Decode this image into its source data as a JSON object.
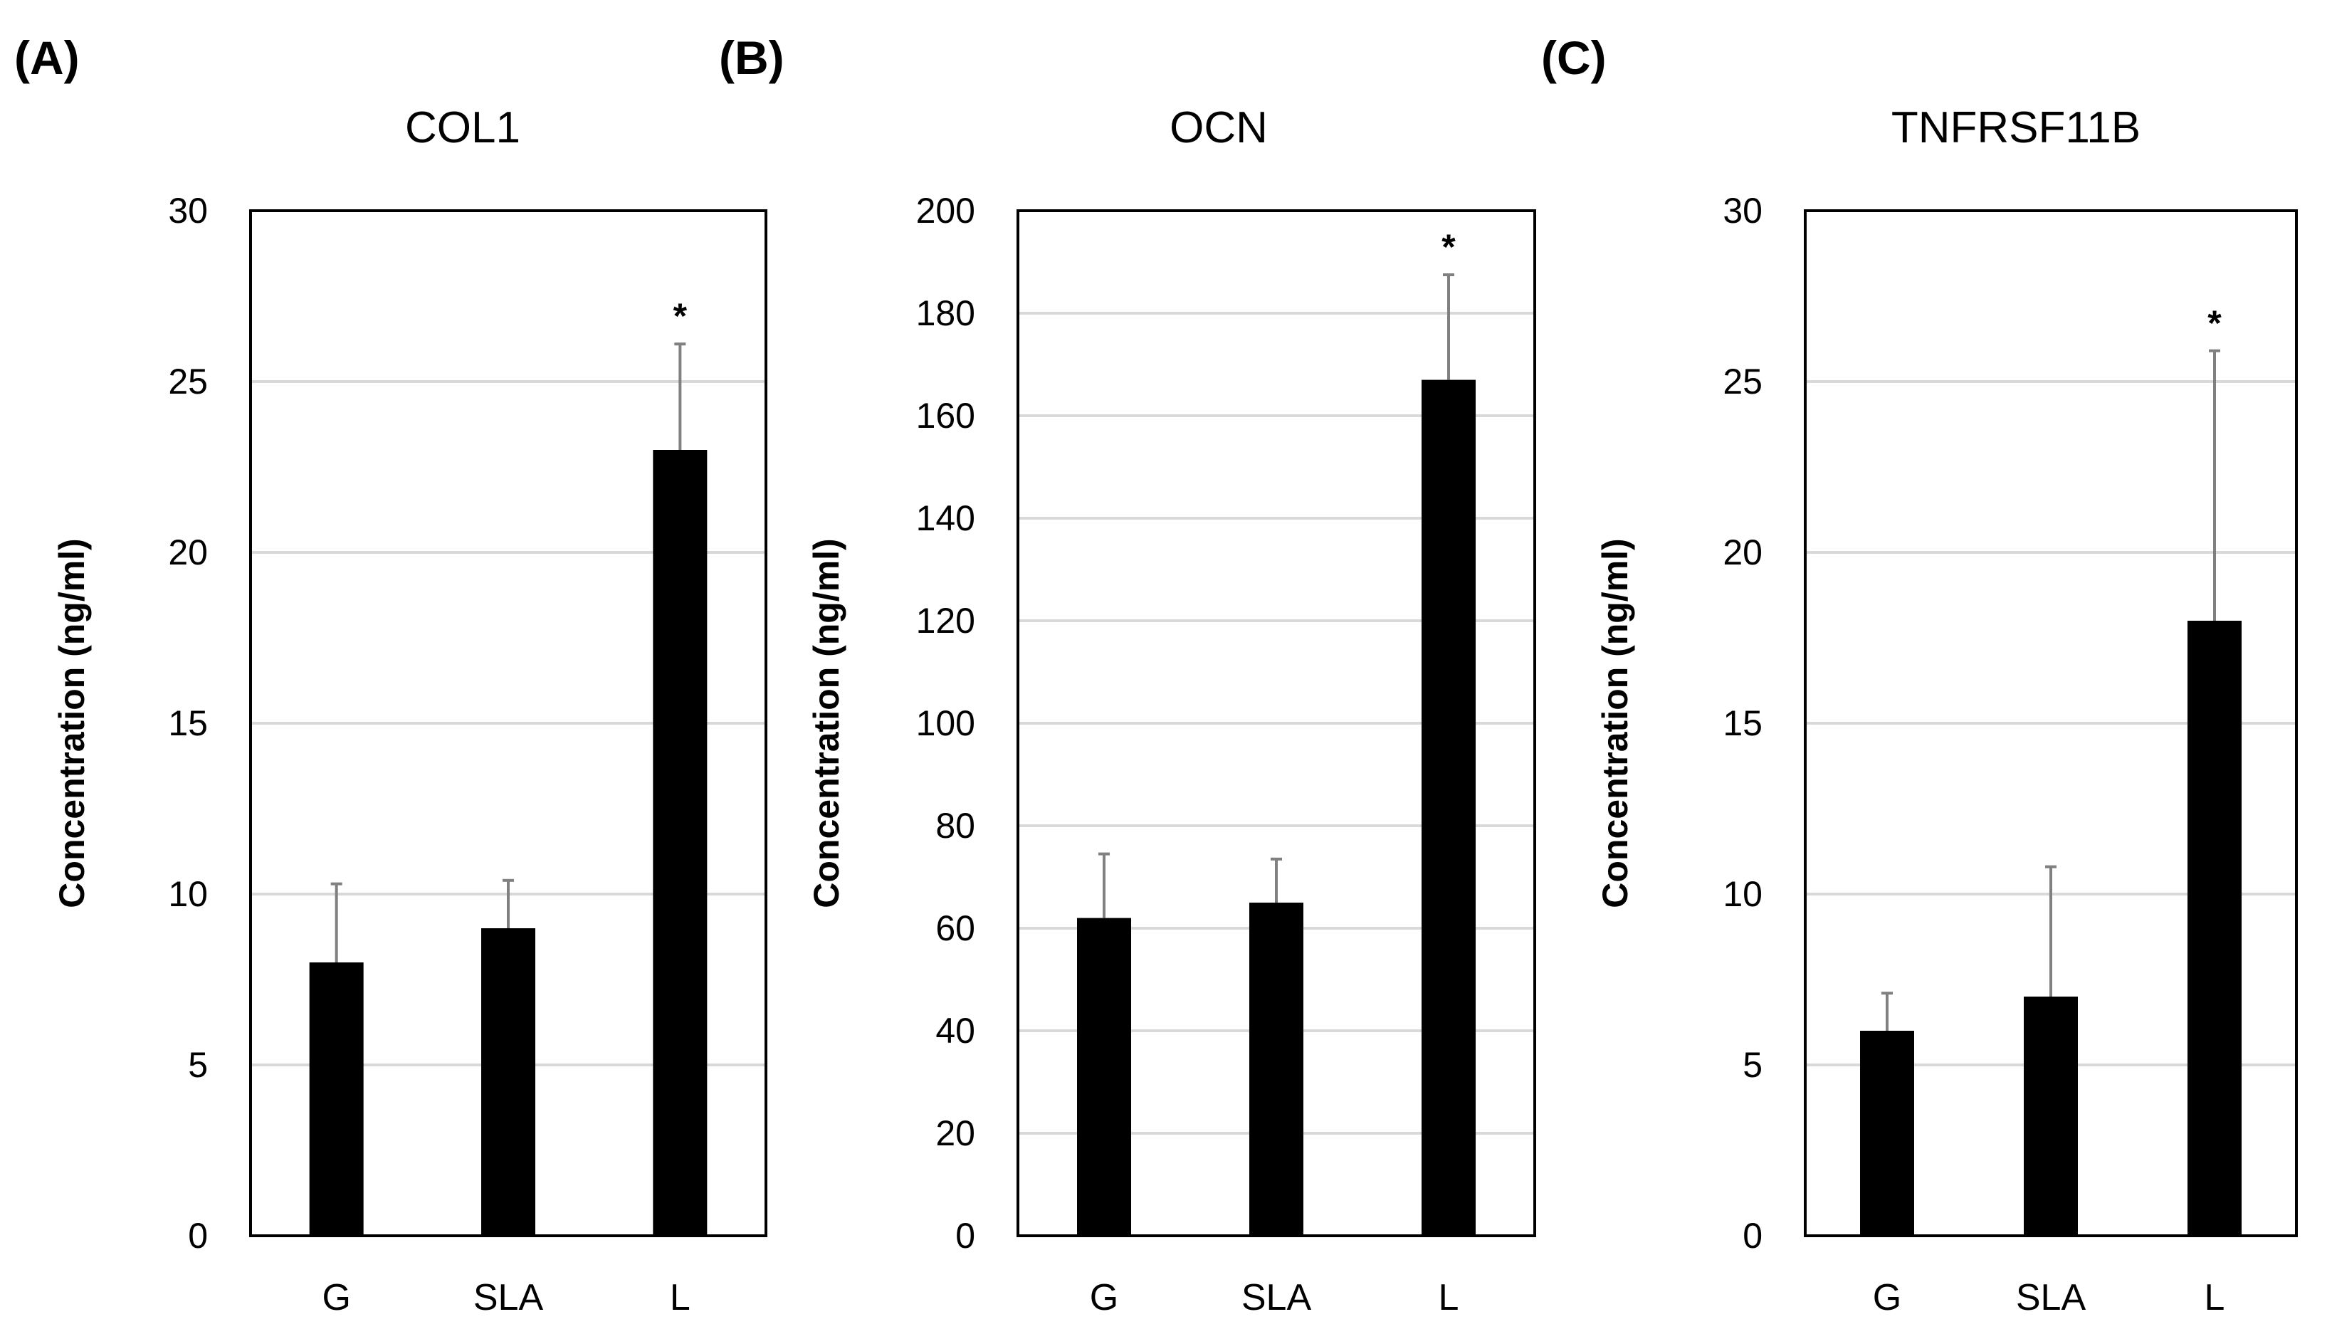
{
  "colors": {
    "bar": "#000000",
    "error_bar": "#808080",
    "grid": "#d9d9d9",
    "frame": "#000000"
  },
  "chart_data": [
    {
      "type": "bar",
      "panel": "(A)",
      "title": "COL1",
      "ylabel": "Concentration (ng/ml)",
      "xlabel": "",
      "categories": [
        "G",
        "SLA",
        "L"
      ],
      "values": [
        8,
        9,
        23
      ],
      "error_upper": [
        10.3,
        10.4,
        26.1
      ],
      "significance": [
        "",
        "",
        "*"
      ],
      "ylim": [
        0,
        30
      ],
      "yticks": [
        0,
        5,
        10,
        15,
        20,
        25,
        30
      ],
      "grid": true,
      "legend": "none"
    },
    {
      "type": "bar",
      "panel": "(B)",
      "title": "OCN",
      "ylabel": "Concentration (ng/ml)",
      "xlabel": "",
      "categories": [
        "G",
        "SLA",
        "L"
      ],
      "values": [
        62,
        65,
        167
      ],
      "error_upper": [
        74.5,
        73.5,
        187.5
      ],
      "significance": [
        "",
        "",
        "*"
      ],
      "ylim": [
        0,
        200
      ],
      "yticks": [
        0,
        20,
        40,
        60,
        80,
        100,
        120,
        140,
        160,
        180,
        200
      ],
      "grid": true,
      "legend": "none"
    },
    {
      "type": "bar",
      "panel": "(C)",
      "title": "TNFRSF11B",
      "ylabel": "Concentration (ng/ml)",
      "xlabel": "",
      "categories": [
        "G",
        "SLA",
        "L"
      ],
      "values": [
        6,
        7,
        18
      ],
      "error_upper": [
        7.1,
        10.8,
        25.9
      ],
      "significance": [
        "",
        "",
        "*"
      ],
      "ylim": [
        0,
        30
      ],
      "yticks": [
        0,
        5,
        10,
        15,
        20,
        25,
        30
      ],
      "grid": true,
      "legend": "none"
    }
  ]
}
